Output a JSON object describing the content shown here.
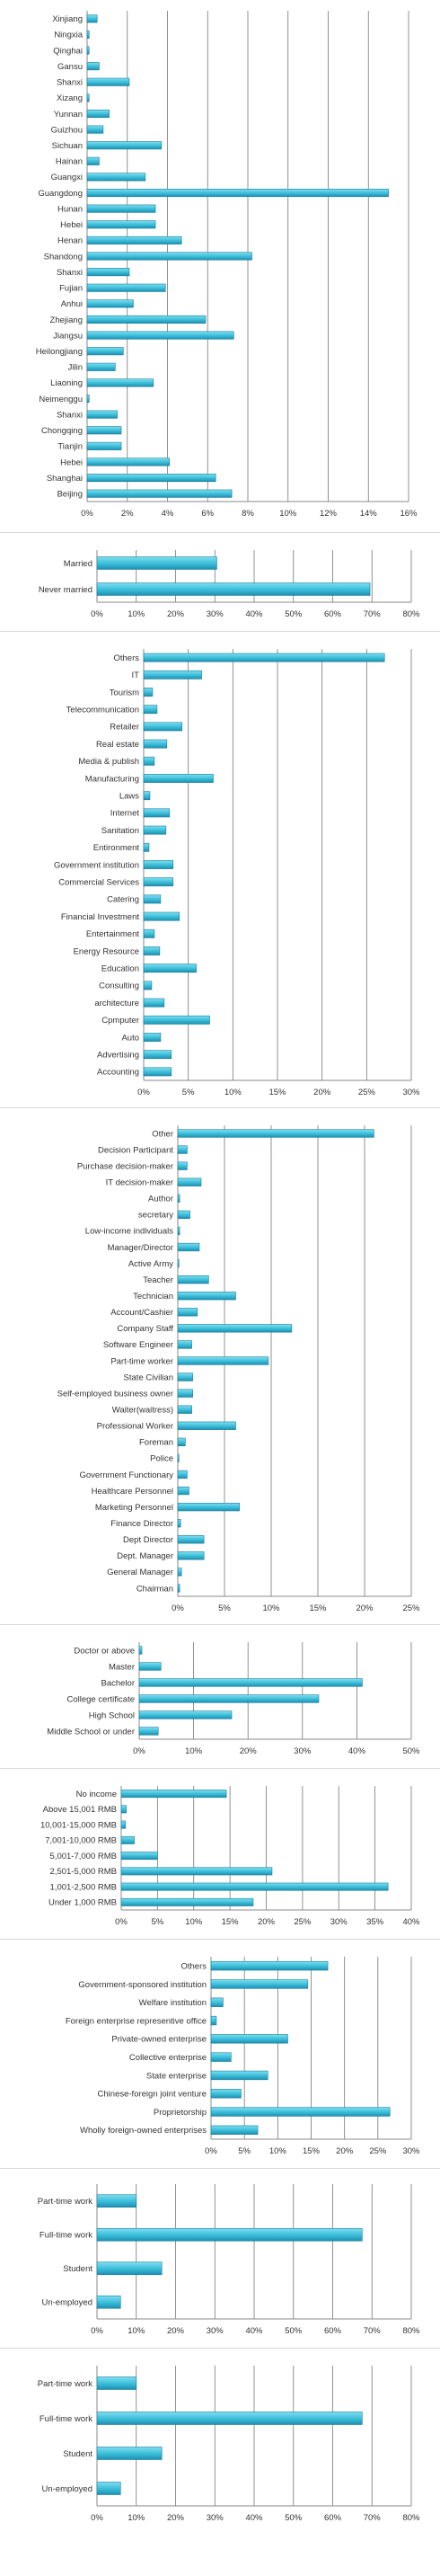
{
  "chart_data": [
    {
      "type": "bar",
      "orientation": "horizontal",
      "categories": [
        "Xinjiang",
        "Ningxia",
        "Qinghai",
        "Gansu",
        "Shanxi",
        "Xizang",
        "Yunnan",
        "Guizhou",
        "Sichuan",
        "Hainan",
        "Guangxi",
        "Guangdong",
        "Hunan",
        "Hebei",
        "Henan",
        "Shandong",
        "Shanxi",
        "Fujian",
        "Anhui",
        "Zhejiang",
        "Jiangsu",
        "Heilongjiang",
        "Jilin",
        "Liaoning",
        "Neimenggu",
        "Shanxi",
        "Chongqing",
        "Tianjin",
        "Hebei",
        "Shanghai",
        "Beijing"
      ],
      "values": [
        0.5,
        0.1,
        0.1,
        0.6,
        2.1,
        0.1,
        1.1,
        0.8,
        3.7,
        0.6,
        2.9,
        15.0,
        3.4,
        3.4,
        4.7,
        8.2,
        2.1,
        3.9,
        2.3,
        5.9,
        7.3,
        1.8,
        1.4,
        3.3,
        0.1,
        1.5,
        1.7,
        1.7,
        4.1,
        6.4,
        7.2
      ],
      "xlim": [
        0,
        16
      ],
      "ticks": [
        "0%",
        "2%",
        "4%",
        "6%",
        "8%",
        "10%",
        "12%",
        "14%",
        "16%"
      ],
      "grid": true
    },
    {
      "type": "bar",
      "orientation": "horizontal",
      "categories": [
        "Married",
        "Never married"
      ],
      "values": [
        30.5,
        69.5
      ],
      "xlim": [
        0,
        80
      ],
      "ticks": [
        "0%",
        "10%",
        "20%",
        "30%",
        "40%",
        "50%",
        "60%",
        "70%",
        "80%"
      ],
      "grid": true
    },
    {
      "type": "bar",
      "orientation": "horizontal",
      "categories": [
        "Others",
        "IT",
        "Tourism",
        "Telecommunication",
        "Retailer",
        "Real estate",
        "Media & publish",
        "Manufacturing",
        "Laws",
        "Internet",
        "Sanitation",
        "Entironment",
        "Government institution",
        "Commercial Services",
        "Catering",
        "Financial Investment",
        "Entertainment",
        "Energy Resource",
        "Education",
        "Consulting",
        "architecture",
        "Cpmputer",
        "Auto",
        "Advertising",
        "Accounting"
      ],
      "values": [
        27.0,
        6.5,
        1.0,
        1.5,
        4.3,
        2.6,
        1.2,
        7.8,
        0.7,
        2.9,
        2.5,
        0.6,
        3.3,
        3.3,
        1.9,
        4.0,
        1.2,
        1.8,
        5.9,
        0.9,
        2.3,
        7.4,
        1.9,
        3.1,
        3.1
      ],
      "xlim": [
        0,
        30
      ],
      "ticks": [
        "0%",
        "5%",
        "10%",
        "15%",
        "20%",
        "25%",
        "30%"
      ],
      "grid": true
    },
    {
      "type": "bar",
      "orientation": "horizontal",
      "categories": [
        "Other",
        "Decision Participant",
        "Purchase decision-maker",
        "IT decision-maker",
        "Author",
        "secretary",
        "Low-income individuals",
        "Manager/Director",
        "Active Army",
        "Teacher",
        "Technician",
        "Account/Cashier",
        "Company Staff",
        "Software Engineer",
        "Part-time worker",
        "State Civilian",
        "Self-employed business owner",
        "Waiter(waitress)",
        "Professional Worker",
        "Foreman",
        "Police",
        "Government Functionary",
        "Healthcare Personnel",
        "Marketing Personnel",
        "Finance Director",
        "Dept Director",
        "Dept. Manager",
        "General Manager",
        "Chairman"
      ],
      "values": [
        21.0,
        1.0,
        1.0,
        2.5,
        0.2,
        1.3,
        0.2,
        2.3,
        0.1,
        3.3,
        6.2,
        2.1,
        12.2,
        1.5,
        9.7,
        1.6,
        1.6,
        1.5,
        6.2,
        0.8,
        0.1,
        1.0,
        1.2,
        6.6,
        0.3,
        2.8,
        2.8,
        0.4,
        0.2
      ],
      "xlim": [
        0,
        25
      ],
      "ticks": [
        "0%",
        "5%",
        "10%",
        "15%",
        "20%",
        "25%"
      ],
      "grid": true
    },
    {
      "type": "bar",
      "orientation": "horizontal",
      "categories": [
        "Doctor or above",
        "Master",
        "Bachelor",
        "College certificate",
        "High School",
        "Middle School or under"
      ],
      "values": [
        0.5,
        4.0,
        41.0,
        33.0,
        17.0,
        3.5
      ],
      "xlim": [
        0,
        50
      ],
      "ticks": [
        "0%",
        "10%",
        "20%",
        "30%",
        "40%",
        "50%"
      ],
      "grid": true
    },
    {
      "type": "bar",
      "orientation": "horizontal",
      "categories": [
        "No income",
        "Above 15,001 RMB",
        "10,001-15,000 RMB",
        "7,001-10,000 RMB",
        "5,001-7,000 RMB",
        "2,501-5,000 RMB",
        "1,001-2,500 RMB",
        "Under 1,000 RMB"
      ],
      "values": [
        14.5,
        0.7,
        0.6,
        1.8,
        5.0,
        20.8,
        36.8,
        18.2
      ],
      "xlim": [
        0,
        40
      ],
      "ticks": [
        "0%",
        "5%",
        "10%",
        "15%",
        "20%",
        "25%",
        "30%",
        "35%",
        "40%"
      ],
      "grid": true
    },
    {
      "type": "bar",
      "orientation": "horizontal",
      "categories": [
        "Others",
        "Government-sponsored institution",
        "Welfare institution",
        "Foreign enterprise representive office",
        "Private-owned enterprise",
        "Collective enterprise",
        "State enterprise",
        "Chinese-foreign joint venture",
        "Proprietorship",
        "Wholly foreign-owned enterprises"
      ],
      "values": [
        17.5,
        14.5,
        1.8,
        0.8,
        11.5,
        3.0,
        8.5,
        4.5,
        26.8,
        7.0
      ],
      "xlim": [
        0,
        30
      ],
      "ticks": [
        "0%",
        "5%",
        "10%",
        "15%",
        "20%",
        "25%",
        "30%"
      ],
      "grid": true
    },
    {
      "type": "bar",
      "orientation": "horizontal",
      "categories": [
        "Part-time work",
        "Full-time work",
        "Student",
        "Un-employed"
      ],
      "values": [
        10.0,
        67.5,
        16.5,
        6.0
      ],
      "xlim": [
        0,
        80
      ],
      "ticks": [
        "0%",
        "10%",
        "20%",
        "30%",
        "40%",
        "50%",
        "60%",
        "70%",
        "80%"
      ],
      "grid": true
    },
    {
      "type": "bar",
      "orientation": "horizontal",
      "categories": [
        "Part-time work",
        "Full-time work",
        "Student",
        "Un-employed"
      ],
      "values": [
        10.0,
        67.5,
        16.5,
        6.0
      ],
      "xlim": [
        0,
        80
      ],
      "ticks": [
        "0%",
        "10%",
        "20%",
        "30%",
        "40%",
        "50%",
        "60%",
        "70%",
        "80%"
      ],
      "grid": true
    }
  ],
  "colors": {
    "bar_fill_top": "#7fdff0",
    "bar_fill_mid": "#39bcd8",
    "bar_fill_bottom": "#1f8fb0",
    "bar_stroke": "#1a7d9a",
    "gridline": "#777777",
    "axis": "#888888"
  }
}
